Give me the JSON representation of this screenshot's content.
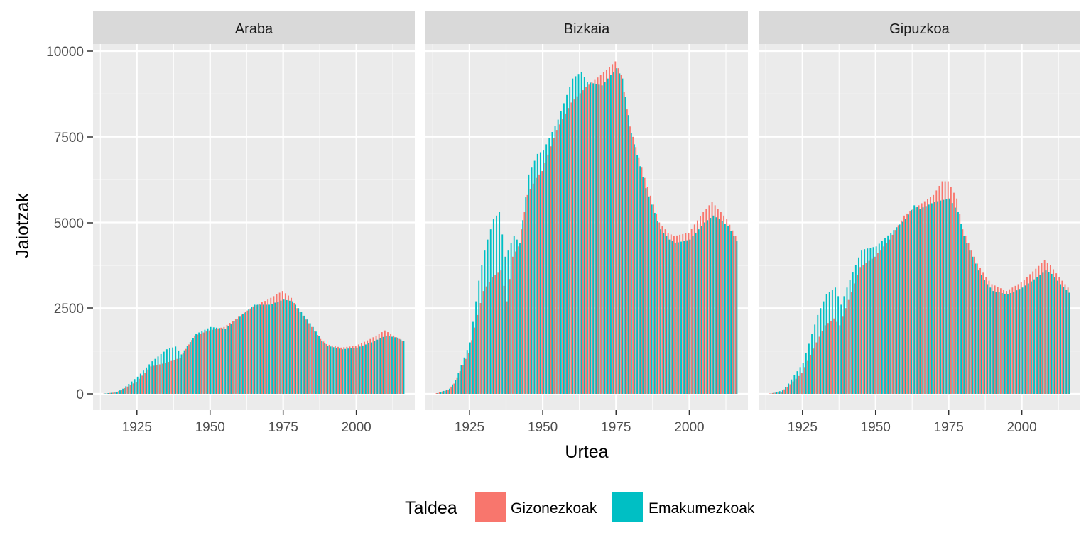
{
  "colors": {
    "male": "#F8766D",
    "female": "#00BFC4",
    "panel_bg": "#EBEBEB",
    "strip_bg": "#D9D9D9",
    "grid": "#FFFFFF"
  },
  "chart_data": {
    "type": "bar",
    "title": "",
    "xlabel": "Urtea",
    "ylabel": "Jaiotzak",
    "xlim": [
      1910,
      2020
    ],
    "ylim": [
      0,
      10000
    ],
    "x_ticks": [
      1925,
      1950,
      1975,
      2000
    ],
    "y_ticks": [
      0,
      2500,
      5000,
      7500,
      10000
    ],
    "y_tick_labels": [
      "0",
      "2500",
      "5000",
      "7500",
      "10000"
    ],
    "grid": true,
    "legend": {
      "title": "Taldea",
      "position": "bottom",
      "entries": [
        "Gizonezkoak",
        "Emakumezkoak"
      ]
    },
    "years": {
      "start": 1914,
      "end": 2016
    },
    "facets": [
      {
        "name": "Araba",
        "male_anchors": [
          [
            1914,
            10
          ],
          [
            1918,
            40
          ],
          [
            1920,
            120
          ],
          [
            1925,
            350
          ],
          [
            1930,
            800
          ],
          [
            1935,
            900
          ],
          [
            1940,
            1050
          ],
          [
            1945,
            1700
          ],
          [
            1950,
            1850
          ],
          [
            1955,
            1950
          ],
          [
            1960,
            2250
          ],
          [
            1965,
            2550
          ],
          [
            1970,
            2750
          ],
          [
            1975,
            3000
          ],
          [
            1978,
            2800
          ],
          [
            1980,
            2500
          ],
          [
            1985,
            1950
          ],
          [
            1988,
            1600
          ],
          [
            1990,
            1450
          ],
          [
            1995,
            1350
          ],
          [
            2000,
            1400
          ],
          [
            2005,
            1600
          ],
          [
            2010,
            1850
          ],
          [
            2013,
            1700
          ],
          [
            2016,
            1550
          ]
        ],
        "female_anchors": [
          [
            1914,
            10
          ],
          [
            1918,
            50
          ],
          [
            1920,
            150
          ],
          [
            1925,
            500
          ],
          [
            1930,
            950
          ],
          [
            1935,
            1300
          ],
          [
            1938,
            1380
          ],
          [
            1940,
            1150
          ],
          [
            1945,
            1750
          ],
          [
            1950,
            1950
          ],
          [
            1955,
            1900
          ],
          [
            1960,
            2250
          ],
          [
            1965,
            2600
          ],
          [
            1970,
            2600
          ],
          [
            1975,
            2750
          ],
          [
            1978,
            2700
          ],
          [
            1980,
            2500
          ],
          [
            1985,
            1950
          ],
          [
            1988,
            1550
          ],
          [
            1990,
            1400
          ],
          [
            1995,
            1300
          ],
          [
            2000,
            1350
          ],
          [
            2005,
            1500
          ],
          [
            2010,
            1700
          ],
          [
            2013,
            1650
          ],
          [
            2016,
            1550
          ]
        ]
      },
      {
        "name": "Bizkaia",
        "male_anchors": [
          [
            1914,
            20
          ],
          [
            1918,
            120
          ],
          [
            1920,
            300
          ],
          [
            1925,
            1200
          ],
          [
            1928,
            2300
          ],
          [
            1930,
            3000
          ],
          [
            1933,
            3400
          ],
          [
            1936,
            3600
          ],
          [
            1938,
            2700
          ],
          [
            1940,
            4000
          ],
          [
            1942,
            4300
          ],
          [
            1945,
            5800
          ],
          [
            1948,
            6300
          ],
          [
            1950,
            6500
          ],
          [
            1955,
            7700
          ],
          [
            1960,
            8500
          ],
          [
            1965,
            8950
          ],
          [
            1970,
            9300
          ],
          [
            1975,
            9700
          ],
          [
            1977,
            9300
          ],
          [
            1980,
            7800
          ],
          [
            1985,
            6300
          ],
          [
            1990,
            5000
          ],
          [
            1993,
            4700
          ],
          [
            1995,
            4600
          ],
          [
            2000,
            4700
          ],
          [
            2005,
            5300
          ],
          [
            2008,
            5600
          ],
          [
            2010,
            5400
          ],
          [
            2013,
            5100
          ],
          [
            2016,
            4600
          ]
        ],
        "female_anchors": [
          [
            1914,
            20
          ],
          [
            1918,
            150
          ],
          [
            1920,
            400
          ],
          [
            1925,
            1500
          ],
          [
            1928,
            3300
          ],
          [
            1930,
            4200
          ],
          [
            1933,
            5100
          ],
          [
            1935,
            5300
          ],
          [
            1937,
            4000
          ],
          [
            1940,
            4600
          ],
          [
            1942,
            4400
          ],
          [
            1945,
            6400
          ],
          [
            1948,
            7000
          ],
          [
            1950,
            7100
          ],
          [
            1955,
            8000
          ],
          [
            1960,
            9200
          ],
          [
            1963,
            9400
          ],
          [
            1965,
            9100
          ],
          [
            1970,
            9000
          ],
          [
            1975,
            9500
          ],
          [
            1977,
            9200
          ],
          [
            1980,
            7600
          ],
          [
            1985,
            6000
          ],
          [
            1990,
            4800
          ],
          [
            1993,
            4500
          ],
          [
            1995,
            4400
          ],
          [
            2000,
            4500
          ],
          [
            2005,
            5000
          ],
          [
            2008,
            5200
          ],
          [
            2010,
            5100
          ],
          [
            2013,
            4900
          ],
          [
            2016,
            4450
          ]
        ]
      },
      {
        "name": "Gipuzkoa",
        "male_anchors": [
          [
            1914,
            10
          ],
          [
            1918,
            60
          ],
          [
            1920,
            200
          ],
          [
            1925,
            600
          ],
          [
            1930,
            1500
          ],
          [
            1933,
            2000
          ],
          [
            1936,
            2200
          ],
          [
            1938,
            2000
          ],
          [
            1940,
            2500
          ],
          [
            1945,
            3700
          ],
          [
            1950,
            4000
          ],
          [
            1955,
            4500
          ],
          [
            1960,
            5200
          ],
          [
            1965,
            5500
          ],
          [
            1970,
            5800
          ],
          [
            1973,
            6200
          ],
          [
            1975,
            6200
          ],
          [
            1978,
            5700
          ],
          [
            1980,
            4800
          ],
          [
            1985,
            3800
          ],
          [
            1988,
            3400
          ],
          [
            1990,
            3200
          ],
          [
            1995,
            3000
          ],
          [
            2000,
            3250
          ],
          [
            2005,
            3650
          ],
          [
            2008,
            3900
          ],
          [
            2010,
            3750
          ],
          [
            2013,
            3400
          ],
          [
            2016,
            3100
          ]
        ],
        "female_anchors": [
          [
            1914,
            10
          ],
          [
            1918,
            100
          ],
          [
            1920,
            300
          ],
          [
            1925,
            900
          ],
          [
            1930,
            2300
          ],
          [
            1933,
            2900
          ],
          [
            1936,
            3100
          ],
          [
            1938,
            2600
          ],
          [
            1940,
            3100
          ],
          [
            1945,
            4200
          ],
          [
            1950,
            4300
          ],
          [
            1955,
            4700
          ],
          [
            1960,
            5100
          ],
          [
            1963,
            5500
          ],
          [
            1965,
            5400
          ],
          [
            1970,
            5600
          ],
          [
            1975,
            5700
          ],
          [
            1978,
            5300
          ],
          [
            1980,
            4600
          ],
          [
            1985,
            3600
          ],
          [
            1988,
            3200
          ],
          [
            1990,
            3000
          ],
          [
            1995,
            2900
          ],
          [
            2000,
            3100
          ],
          [
            2005,
            3400
          ],
          [
            2008,
            3600
          ],
          [
            2010,
            3500
          ],
          [
            2013,
            3200
          ],
          [
            2016,
            2950
          ]
        ]
      }
    ]
  }
}
